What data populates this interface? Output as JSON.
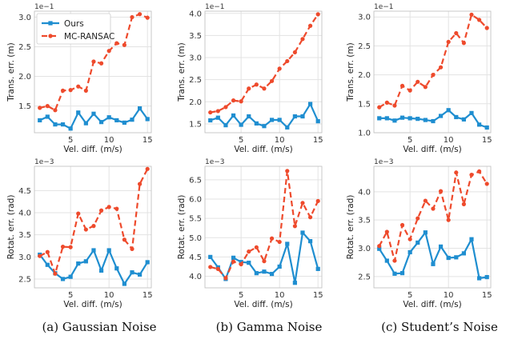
{
  "legend": {
    "ours": "Ours",
    "mc": "MC-RANSAC"
  },
  "colors": {
    "ours": "#1f8ed0",
    "mc": "#ee4a2c"
  },
  "captions": [
    "(a) Gaussian Noise",
    "(b) Gamma Noise",
    "(c) Student’s Noise"
  ],
  "chart_data": [
    {
      "type": "line",
      "panel": "gaussian-trans",
      "xlabel": "Vel. diff. (m/s)",
      "ylabel": "Trans. err. (m)",
      "scale_label": "1e−1",
      "x": [
        1,
        2,
        3,
        4,
        5,
        6,
        7,
        8,
        9,
        10,
        11,
        12,
        13,
        14,
        15
      ],
      "xticks": [
        5,
        10,
        15
      ],
      "ylim": [
        1.05,
        3.1
      ],
      "yticks": [
        1.5,
        2.0,
        2.5,
        3.0
      ],
      "ytick_labels": [
        "1.5",
        "2.0",
        "2.5",
        "3.0"
      ],
      "series": [
        {
          "name": "Ours",
          "values": [
            1.26,
            1.32,
            1.19,
            1.19,
            1.12,
            1.39,
            1.21,
            1.37,
            1.23,
            1.31,
            1.26,
            1.22,
            1.27,
            1.46,
            1.28
          ]
        },
        {
          "name": "MC-RANSAC",
          "values": [
            1.47,
            1.5,
            1.43,
            1.76,
            1.77,
            1.83,
            1.76,
            2.25,
            2.22,
            2.43,
            2.56,
            2.53,
            3.0,
            3.05,
            2.99
          ]
        }
      ]
    },
    {
      "type": "line",
      "panel": "gamma-trans",
      "xlabel": "Vel. diff. (m/s)",
      "ylabel": "Trans. err. (m)",
      "scale_label": "1e−1",
      "x": [
        1,
        2,
        3,
        4,
        5,
        6,
        7,
        8,
        9,
        10,
        11,
        12,
        13,
        14,
        15
      ],
      "xticks": [
        5,
        10,
        15
      ],
      "ylim": [
        1.3,
        4.05
      ],
      "yticks": [
        1.5,
        2.0,
        2.5,
        3.0,
        3.5,
        4.0
      ],
      "ytick_labels": [
        "1.5",
        "2.0",
        "2.5",
        "3.0",
        "3.5",
        "4.0"
      ],
      "series": [
        {
          "name": "Ours",
          "values": [
            1.58,
            1.64,
            1.47,
            1.69,
            1.48,
            1.67,
            1.51,
            1.45,
            1.59,
            1.59,
            1.42,
            1.67,
            1.67,
            1.95,
            1.56
          ]
        },
        {
          "name": "MC-RANSAC",
          "values": [
            1.76,
            1.79,
            1.88,
            2.03,
            2.01,
            2.3,
            2.39,
            2.3,
            2.47,
            2.75,
            2.92,
            3.12,
            3.42,
            3.72,
            3.98
          ]
        }
      ]
    },
    {
      "type": "line",
      "panel": "students-trans",
      "xlabel": "Vel. diff. (m/s)",
      "ylabel": "Trans. err. (m)",
      "scale_label": "1e−1",
      "x": [
        1,
        2,
        3,
        4,
        5,
        6,
        7,
        8,
        9,
        10,
        11,
        12,
        13,
        14,
        15
      ],
      "xticks": [
        5,
        10,
        15
      ],
      "ylim": [
        1.0,
        3.1
      ],
      "yticks": [
        1.0,
        1.5,
        2.0,
        2.5,
        3.0
      ],
      "ytick_labels": [
        "1.0",
        "1.5",
        "2.0",
        "2.5",
        "3.0"
      ],
      "series": [
        {
          "name": "Ours",
          "values": [
            1.25,
            1.25,
            1.21,
            1.26,
            1.25,
            1.24,
            1.22,
            1.2,
            1.29,
            1.39,
            1.27,
            1.23,
            1.34,
            1.14,
            1.09
          ]
        },
        {
          "name": "MC-RANSAC",
          "values": [
            1.44,
            1.52,
            1.47,
            1.81,
            1.73,
            1.88,
            1.79,
            2.0,
            2.13,
            2.57,
            2.72,
            2.55,
            3.04,
            2.95,
            2.81
          ]
        }
      ]
    },
    {
      "type": "line",
      "panel": "gaussian-rot",
      "xlabel": "Vel. diff. (m/s)",
      "ylabel": "Rotat. err. (rad)",
      "scale_label": "1e−3",
      "x": [
        1,
        2,
        3,
        4,
        5,
        6,
        7,
        8,
        9,
        10,
        11,
        12,
        13,
        14,
        15
      ],
      "xticks": [
        5,
        10,
        15
      ],
      "ylim": [
        2.3,
        5.05
      ],
      "yticks": [
        2.5,
        3.0,
        3.5,
        4.0,
        4.5
      ],
      "ytick_labels": [
        "2.5",
        "3.0",
        "3.5",
        "4.0",
        "4.5"
      ],
      "series": [
        {
          "name": "Ours",
          "values": [
            3.05,
            2.82,
            2.63,
            2.5,
            2.55,
            2.85,
            2.9,
            3.15,
            2.69,
            3.15,
            2.74,
            2.39,
            2.65,
            2.6,
            2.88
          ]
        },
        {
          "name": "MC-RANSAC",
          "values": [
            3.02,
            3.11,
            2.62,
            3.23,
            3.22,
            3.98,
            3.62,
            3.7,
            4.05,
            4.13,
            4.09,
            3.39,
            3.18,
            4.65,
            4.99
          ]
        }
      ]
    },
    {
      "type": "line",
      "panel": "gamma-rot",
      "xlabel": "Vel. diff. (m/s)",
      "ylabel": "Rotat. err. (rad)",
      "scale_label": "1e−3",
      "x": [
        1,
        2,
        3,
        4,
        5,
        6,
        7,
        8,
        9,
        10,
        11,
        12,
        13,
        14,
        15
      ],
      "xticks": [
        5,
        10,
        15
      ],
      "ylim": [
        3.7,
        6.85
      ],
      "yticks": [
        4.0,
        4.5,
        5.0,
        5.5,
        6.0,
        6.5
      ],
      "ytick_labels": [
        "4.0",
        "4.5",
        "5.0",
        "5.5",
        "6.0",
        "6.5"
      ],
      "series": [
        {
          "name": "Ours",
          "values": [
            4.5,
            4.23,
            3.93,
            4.48,
            4.37,
            4.35,
            4.08,
            4.12,
            4.06,
            4.25,
            4.84,
            3.83,
            5.13,
            4.91,
            4.19
          ]
        },
        {
          "name": "MC-RANSAC",
          "values": [
            4.24,
            4.19,
            3.95,
            4.38,
            4.31,
            4.64,
            4.75,
            4.39,
            4.98,
            4.89,
            6.73,
            5.3,
            5.9,
            5.53,
            5.95
          ]
        }
      ]
    },
    {
      "type": "line",
      "panel": "students-rot",
      "xlabel": "Vel. diff. (m/s)",
      "ylabel": "Rotat. err. (rad)",
      "scale_label": "1e−3",
      "x": [
        1,
        2,
        3,
        4,
        5,
        6,
        7,
        8,
        9,
        10,
        11,
        12,
        13,
        14,
        15
      ],
      "xticks": [
        5,
        10,
        15
      ],
      "ylim": [
        2.3,
        4.45
      ],
      "yticks": [
        2.5,
        3.0,
        3.5,
        4.0
      ],
      "ytick_labels": [
        "2.5",
        "3.0",
        "3.5",
        "4.0"
      ],
      "series": [
        {
          "name": "Ours",
          "values": [
            2.99,
            2.78,
            2.55,
            2.56,
            2.93,
            3.1,
            3.28,
            2.72,
            3.03,
            2.83,
            2.84,
            2.91,
            3.16,
            2.47,
            2.49
          ]
        },
        {
          "name": "MC-RANSAC",
          "values": [
            3.04,
            3.29,
            2.78,
            3.41,
            3.16,
            3.53,
            3.84,
            3.7,
            4.01,
            3.5,
            4.34,
            3.78,
            4.3,
            4.36,
            4.14
          ]
        }
      ]
    }
  ]
}
